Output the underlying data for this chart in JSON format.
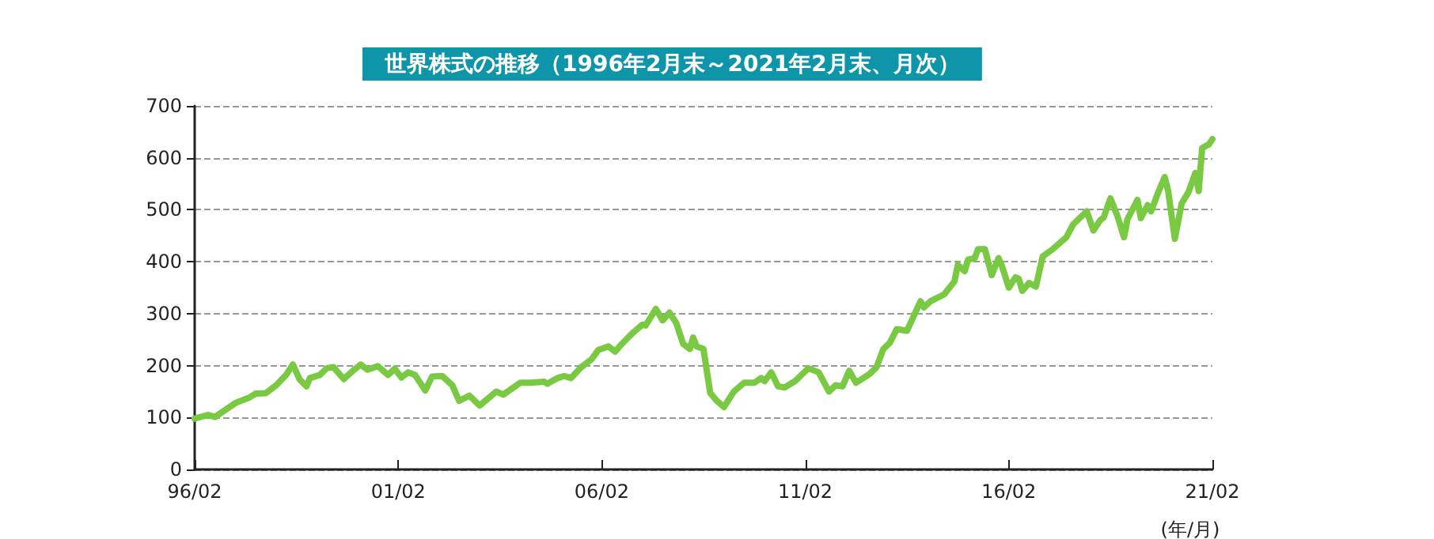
{
  "chart_data": {
    "type": "line",
    "title": "世界株式の推移（1996年2月末～2021年2月末、月次）",
    "xlabel": "(年/月)",
    "x": [
      "1996-02",
      "1996-06",
      "1996-08",
      "1997-02",
      "1997-06",
      "1997-08",
      "1997-11",
      "1998-02",
      "1998-05",
      "1998-07",
      "1998-09",
      "1998-11",
      "1998-12",
      "1999-03",
      "1999-05",
      "1999-07",
      "1999-10",
      "2000-01",
      "2000-03",
      "2000-05",
      "2000-08",
      "2000-11",
      "2001-01",
      "2001-03",
      "2001-05",
      "2001-07",
      "2001-10",
      "2001-12",
      "2002-03",
      "2002-06",
      "2002-08",
      "2002-11",
      "2003-02",
      "2003-07",
      "2003-09",
      "2004-02",
      "2004-05",
      "2004-09",
      "2004-10",
      "2005-01",
      "2005-03",
      "2005-05",
      "2005-08",
      "2005-11",
      "2006-01",
      "2006-04",
      "2006-06",
      "2006-08",
      "2006-11",
      "2007-02",
      "2007-03",
      "2007-06",
      "2007-08",
      "2007-10",
      "2007-12",
      "2008-02",
      "2008-04",
      "2008-05",
      "2008-06",
      "2008-08",
      "2008-10",
      "2008-12",
      "2009-02",
      "2009-05",
      "2009-08",
      "2009-11",
      "2010-01",
      "2010-02",
      "2010-04",
      "2010-06",
      "2010-08",
      "2010-11",
      "2011-03",
      "2011-06",
      "2011-09",
      "2011-11",
      "2012-01",
      "2012-03",
      "2012-05",
      "2012-09",
      "2012-11",
      "2013-01",
      "2013-03",
      "2013-05",
      "2013-08",
      "2013-12",
      "2014-01",
      "2014-03",
      "2014-07",
      "2014-10",
      "2014-11",
      "2015-01",
      "2015-02",
      "2015-04",
      "2015-05",
      "2015-07",
      "2015-09",
      "2015-11",
      "2015-12",
      "2016-02",
      "2016-04",
      "2016-05",
      "2016-06",
      "2016-08",
      "2016-10",
      "2016-12",
      "2017-03",
      "2017-07",
      "2017-09",
      "2018-01",
      "2018-03",
      "2018-05",
      "2018-06",
      "2018-08",
      "2018-10",
      "2018-12",
      "2019-01",
      "2019-04",
      "2019-05",
      "2019-07",
      "2019-08",
      "2019-10",
      "2019-12",
      "2020-01",
      "2020-03",
      "2020-05",
      "2020-07",
      "2020-09",
      "2020-10",
      "2020-11",
      "2021-01",
      "2021-02"
    ],
    "series": [
      {
        "color": "#7ac943",
        "values": [
          98,
          105,
          101,
          128,
          138,
          146,
          147,
          162,
          182,
          202,
          173,
          160,
          176,
          182,
          195,
          197,
          174,
          192,
          202,
          192,
          199,
          182,
          194,
          177,
          187,
          182,
          152,
          179,
          180,
          162,
          132,
          142,
          123,
          150,
          144,
          167,
          167,
          169,
          165,
          176,
          180,
          176,
          197,
          212,
          230,
          237,
          227,
          242,
          262,
          279,
          277,
          309,
          287,
          302,
          282,
          242,
          232,
          254,
          237,
          232,
          147,
          132,
          120,
          150,
          167,
          167,
          176,
          170,
          187,
          160,
          158,
          170,
          195,
          187,
          150,
          162,
          160,
          190,
          167,
          184,
          197,
          232,
          244,
          270,
          267,
          324,
          312,
          324,
          337,
          362,
          394,
          382,
          404,
          407,
          424,
          424,
          374,
          407,
          392,
          350,
          370,
          367,
          344,
          359,
          352,
          410,
          424,
          447,
          472,
          497,
          460,
          480,
          485,
          522,
          489,
          447,
          482,
          519,
          484,
          509,
          497,
          532,
          563,
          536,
          444,
          512,
          534,
          571,
          536,
          619,
          626,
          636
        ]
      }
    ],
    "xlim": [
      "1996-02",
      "2021-02"
    ],
    "xticks": [
      {
        "value": "1996-02",
        "label": "96/02"
      },
      {
        "value": "2001-02",
        "label": "01/02"
      },
      {
        "value": "2006-02",
        "label": "06/02"
      },
      {
        "value": "2011-02",
        "label": "11/02"
      },
      {
        "value": "2016-02",
        "label": "16/02"
      },
      {
        "value": "2021-02",
        "label": "21/02"
      }
    ],
    "ylim": [
      0,
      700
    ],
    "yticks": [
      0,
      100,
      200,
      300,
      400,
      500,
      600,
      700
    ],
    "grid": "y",
    "marker": "none",
    "line_style": "solid"
  }
}
